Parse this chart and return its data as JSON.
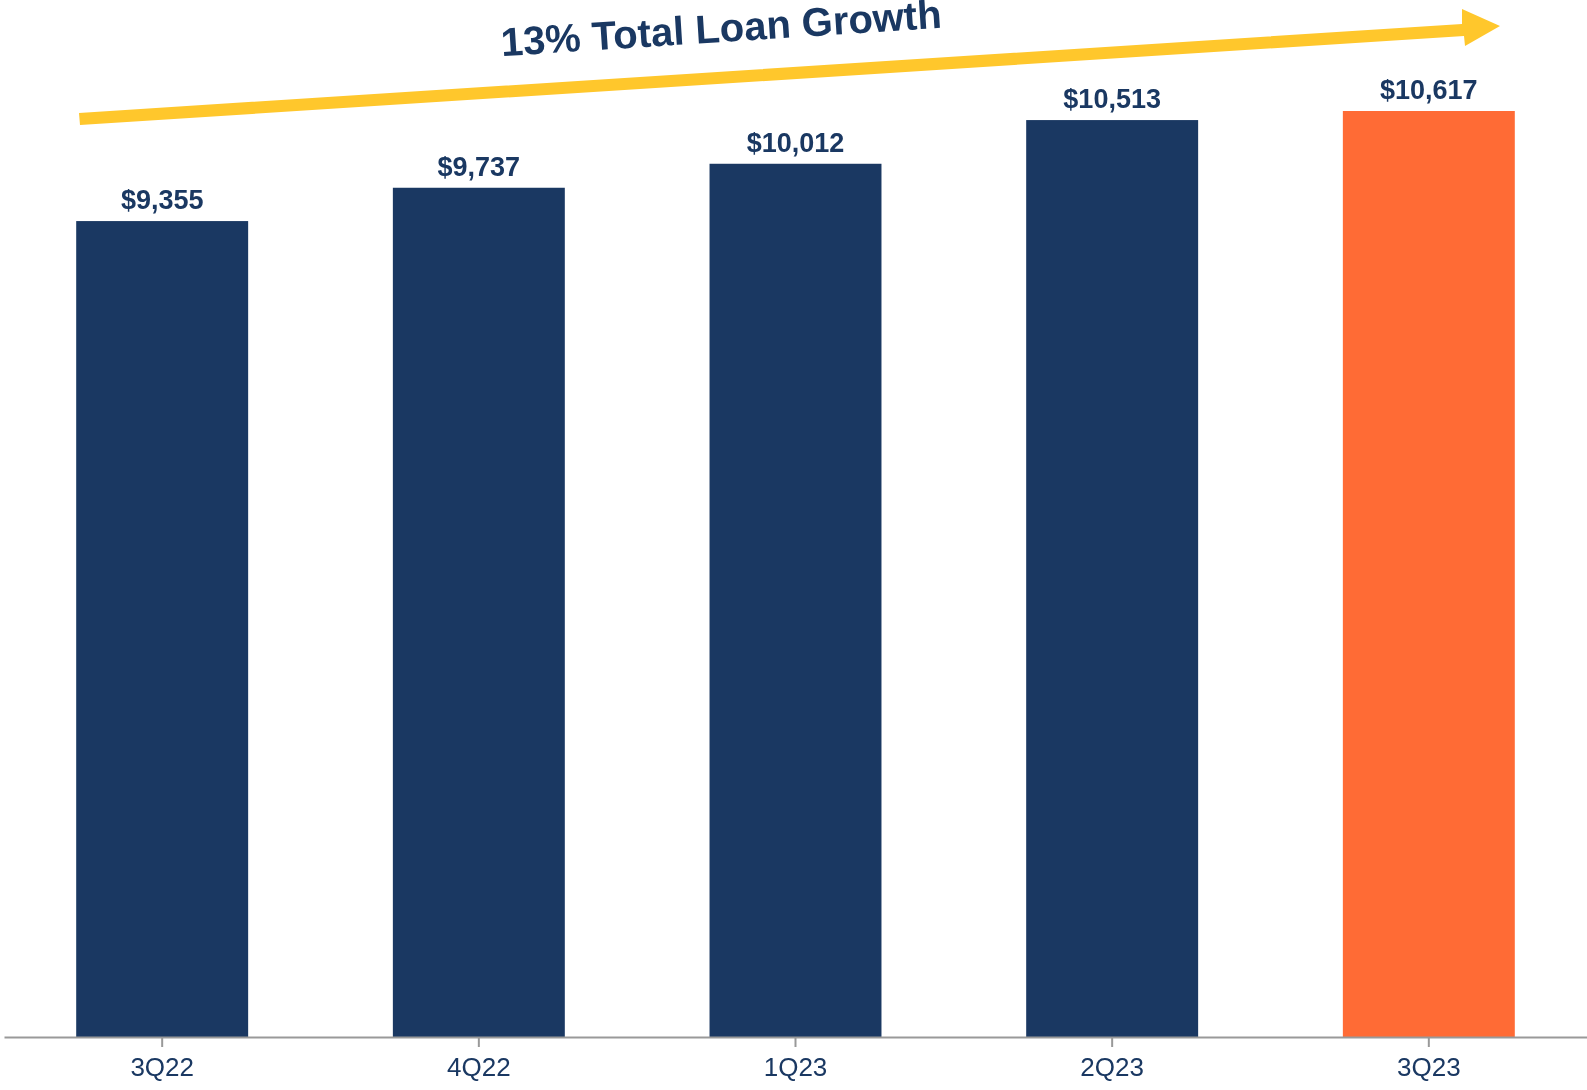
{
  "chart_data": {
    "type": "bar",
    "title": "13% Total Loan Growth",
    "categories": [
      "3Q22",
      "4Q22",
      "1Q23",
      "2Q23",
      "3Q23"
    ],
    "values": [
      9355,
      9737,
      10012,
      10513,
      10617
    ],
    "colors": [
      "#1a3862",
      "#1a3862",
      "#1a3862",
      "#1a3862",
      "#ff6b35"
    ],
    "value_labels": [
      "$9,355",
      "$9,737",
      "$10,012",
      "$10,513",
      "$10,617"
    ],
    "tick_labels": "x"
  }
}
